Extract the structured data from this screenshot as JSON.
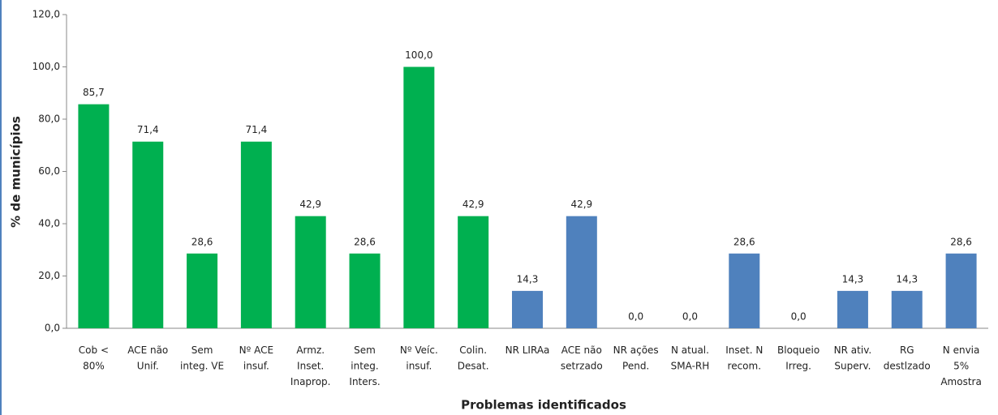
{
  "chart_data": {
    "type": "bar",
    "y_label": "% de municípios",
    "x_label": "Problemas identificados",
    "categories": [
      [
        "Cob <",
        "80%"
      ],
      [
        "ACE não",
        "Unif."
      ],
      [
        "Sem",
        "integ. VE"
      ],
      [
        "Nº ACE",
        "insuf."
      ],
      [
        "Armz.",
        "Inset.",
        "Inaprop."
      ],
      [
        "Sem",
        "integ.",
        "Inters."
      ],
      [
        "Nº Veíc.",
        "insuf."
      ],
      [
        "Colin.",
        "Desat."
      ],
      [
        "NR LIRAa"
      ],
      [
        "ACE não",
        "setrzado"
      ],
      [
        "NR ações",
        "Pend."
      ],
      [
        "N atual.",
        "SMA-RH"
      ],
      [
        "Inset. N",
        "recom."
      ],
      [
        "Bloqueio",
        "Irreg."
      ],
      [
        "NR ativ.",
        "Superv."
      ],
      [
        "RG",
        "destlzado"
      ],
      [
        "N envia",
        "5%",
        "Amostra"
      ]
    ],
    "values": [
      85.7,
      71.4,
      28.6,
      71.4,
      42.9,
      28.6,
      100,
      42.9,
      14.3,
      42.9,
      0,
      0,
      28.6,
      0,
      14.3,
      14.3,
      28.6
    ],
    "value_labels": [
      "85,7",
      "71,4",
      "28,6",
      "71,4",
      "42,9",
      "28,6",
      "100,0",
      "42,9",
      "14,3",
      "42,9",
      "0,0",
      "0,0",
      "28,6",
      "0,0",
      "14,3",
      "14,3",
      "28,6"
    ],
    "colors": [
      "#00b050",
      "#00b050",
      "#00b050",
      "#00b050",
      "#00b050",
      "#00b050",
      "#00b050",
      "#00b050",
      "#4f81bd",
      "#4f81bd",
      "#4f81bd",
      "#4f81bd",
      "#4f81bd",
      "#4f81bd",
      "#4f81bd",
      "#4f81bd",
      "#4f81bd"
    ],
    "ylim": [
      0,
      120
    ],
    "yticks": [
      {
        "value": 0,
        "label": "0,0"
      },
      {
        "value": 20,
        "label": "20,0"
      },
      {
        "value": 40,
        "label": "40,0"
      },
      {
        "value": 60,
        "label": "60,0"
      },
      {
        "value": 80,
        "label": "80,0"
      },
      {
        "value": 100,
        "label": "100,0"
      },
      {
        "value": 120,
        "label": "120,0"
      }
    ]
  }
}
